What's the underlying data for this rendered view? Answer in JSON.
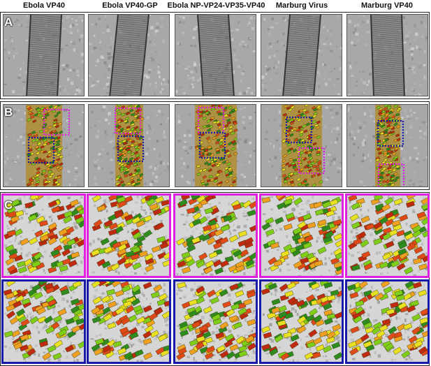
{
  "columns": [
    {
      "title": "Ebola VP40",
      "b_boxes": [
        {
          "color": "magenta"
        },
        {
          "color": "blue"
        }
      ]
    },
    {
      "title": "Ebola VP40-GP",
      "b_boxes": [
        {
          "color": "magenta"
        },
        {
          "color": "blue"
        }
      ]
    },
    {
      "title": "Ebola NP-VP24-VP35-VP40",
      "b_boxes": [
        {
          "color": "magenta"
        },
        {
          "color": "blue"
        }
      ]
    },
    {
      "title": "Marburg Virus",
      "b_boxes": [
        {
          "color": "blue"
        },
        {
          "color": "magenta"
        }
      ]
    },
    {
      "title": "Marburg VP40",
      "b_boxes": [
        {
          "color": "blue"
        },
        {
          "color": "magenta"
        }
      ]
    }
  ],
  "panels": {
    "a_label": "A",
    "b_label": "B",
    "c_label": "C"
  },
  "colors": {
    "magenta": "#e020e0",
    "blue": "#1a1aa8",
    "tomo_gray": "#a8a8a8",
    "lattice": [
      "#2e8b1e",
      "#7fcf1a",
      "#e8e020",
      "#f0a020",
      "#e04a18",
      "#c02a10"
    ]
  }
}
